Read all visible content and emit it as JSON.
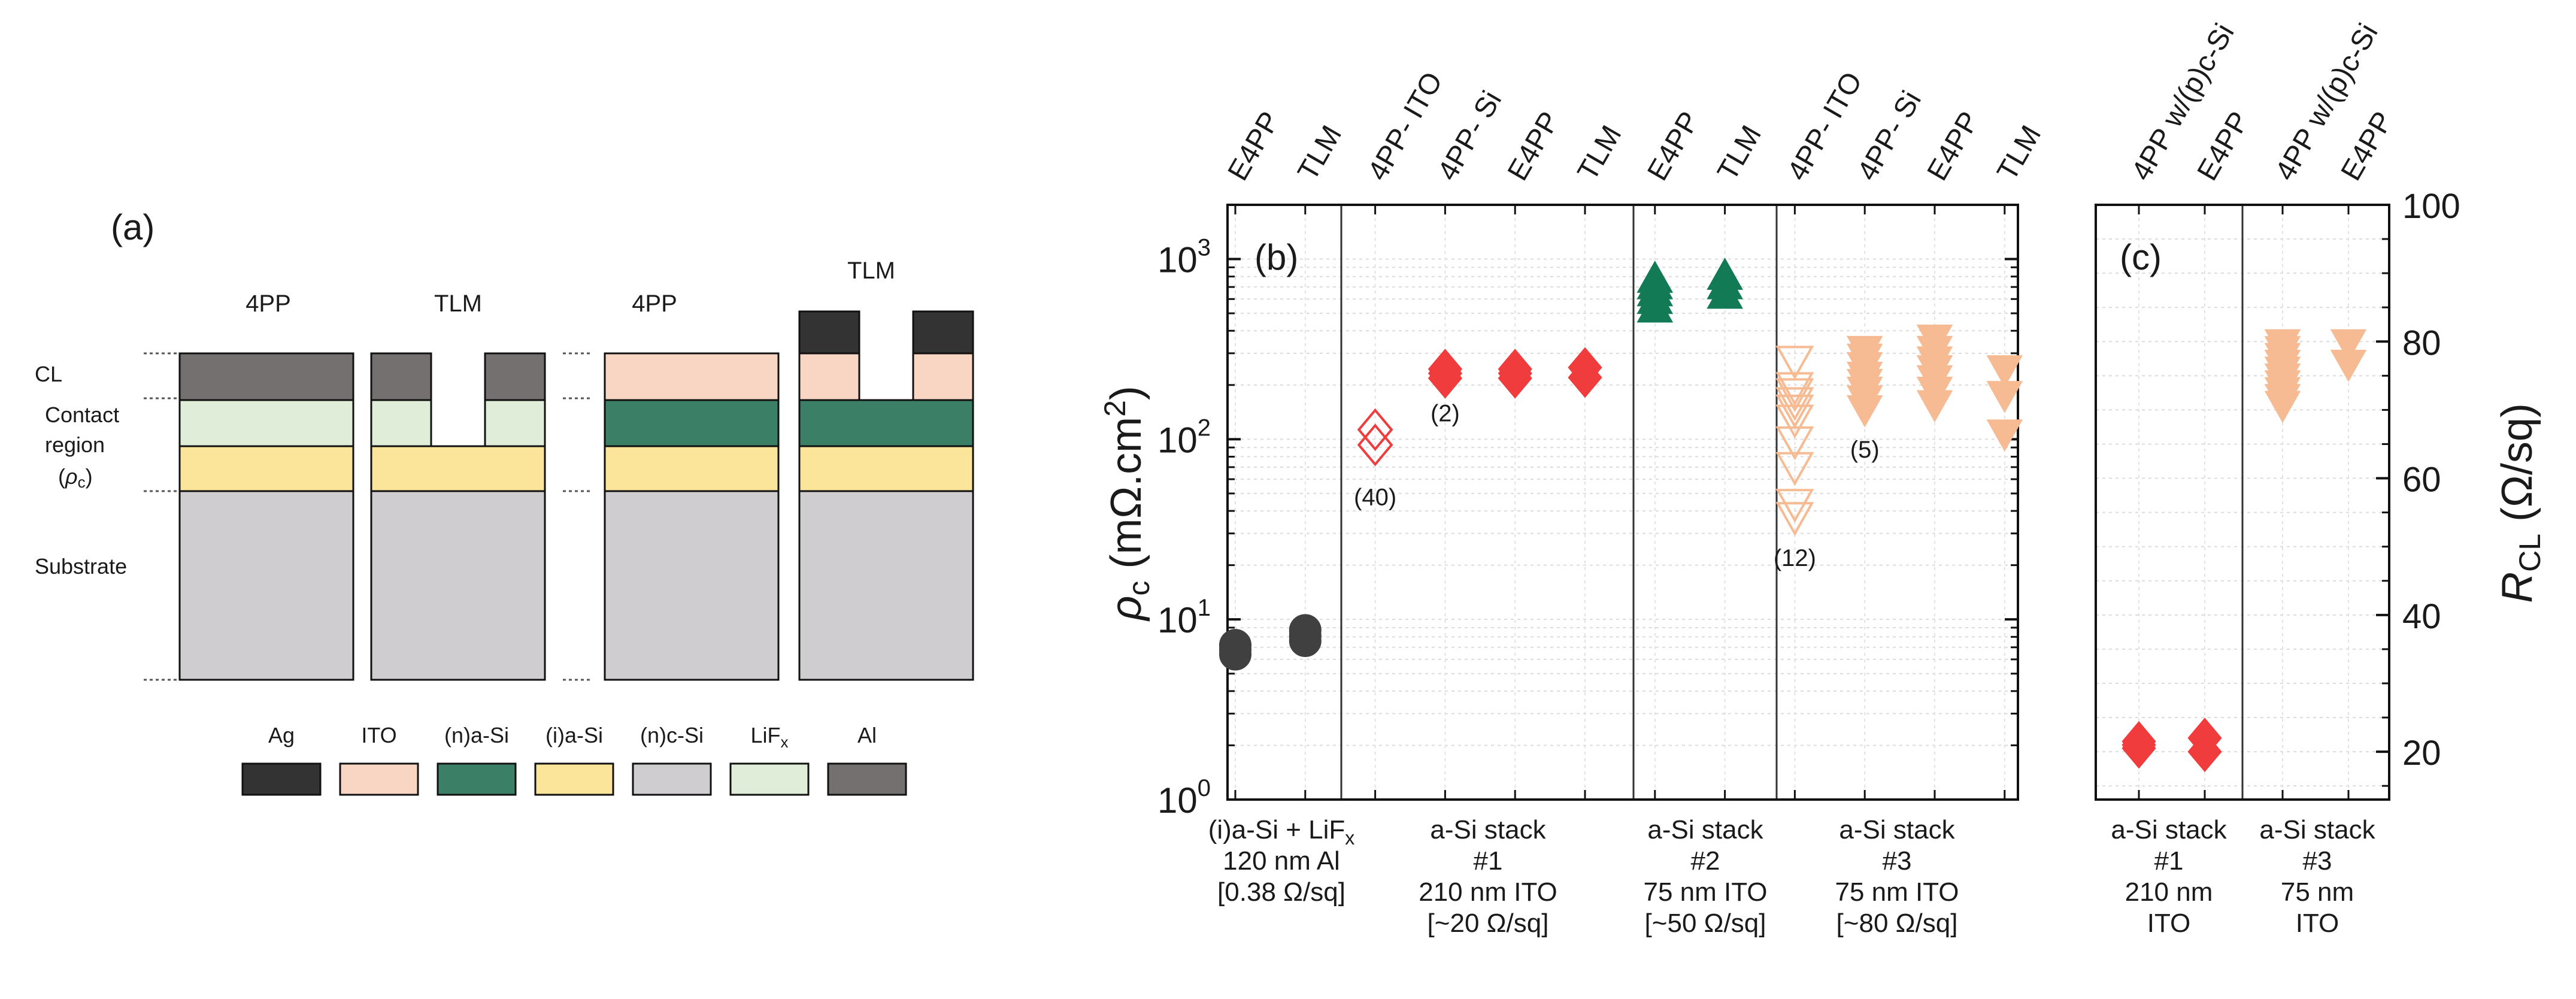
{
  "colors": {
    "ag": "#333333",
    "ito": "#f8d6c3",
    "n_asi": "#3b8066",
    "i_asi": "#fbe59b",
    "n_csi": "#cfcdcf",
    "lifx": "#e0eed9",
    "al": "#757070",
    "stack0": "#404040",
    "stack1": "#f03c3c",
    "stack2": "#127a55",
    "stack3": "#f6bb93"
  },
  "panel_a": {
    "label": "(a)",
    "rows": [
      "CL",
      "Contact",
      "region",
      "(",
      "ρ",
      "c",
      ")",
      "Substrate"
    ],
    "columns": [
      "4PP",
      "TLM",
      "4PP",
      "TLM"
    ],
    "legend": [
      {
        "label": "Ag",
        "key": "ag"
      },
      {
        "label": "ITO",
        "key": "ito"
      },
      {
        "label": "(n)a-Si",
        "key": "n_asi"
      },
      {
        "label": "(i)a-Si",
        "key": "i_asi"
      },
      {
        "label": "(n)c-Si",
        "key": "n_csi"
      },
      {
        "label": "LiF",
        "sub": "x",
        "key": "lifx"
      },
      {
        "label": "Al",
        "key": "al"
      }
    ]
  },
  "chart_data": [
    {
      "type": "scatter",
      "panel": "(b)",
      "y_scale": "log",
      "ylabel_symbol": "ρ",
      "ylabel_sub": "c",
      "ylabel_unit": " (mΩ.cm",
      "ylabel_sup": "2",
      "ylabel_end": ")",
      "ylim": [
        1,
        2000
      ],
      "y_ticks": [
        {
          "b": "10",
          "e": "0",
          "v": 1
        },
        {
          "b": "10",
          "e": "1",
          "v": 10
        },
        {
          "b": "10",
          "e": "2",
          "v": 100
        },
        {
          "b": "10",
          "e": "3",
          "v": 1000
        }
      ],
      "x_top_labels": [
        "E4PP",
        "TLM",
        "4PP- ITO",
        "4PP- Si",
        "E4PP",
        "TLM",
        "E4PP",
        "TLM",
        "4PP- ITO",
        "4PP- Si",
        "E4PP",
        "TLM"
      ],
      "groups": [
        {
          "lines": [
            {
              "t": "(i)a-Si + LiF",
              "sub": "x"
            },
            {
              "t": "120 nm Al"
            },
            {
              "t": "[0.38 Ω/sq]"
            }
          ]
        },
        {
          "lines": [
            {
              "t": "a-Si stack"
            },
            {
              "t": "#1"
            },
            {
              "t": "210 nm ITO"
            },
            {
              "t": "[~20 Ω/sq]"
            }
          ]
        },
        {
          "lines": [
            {
              "t": "a-Si stack"
            },
            {
              "t": "#2"
            },
            {
              "t": "75 nm ITO"
            },
            {
              "t": "[~50 Ω/sq]"
            }
          ]
        },
        {
          "lines": [
            {
              "t": "a-Si stack"
            },
            {
              "t": "#3"
            },
            {
              "t": "75 nm ITO"
            },
            {
              "t": "[~80 Ω/sq]"
            }
          ]
        }
      ],
      "series": [
        {
          "x": 0,
          "marker": "circle",
          "filled": true,
          "color_key": "stack0",
          "values": [
            6.4,
            6.8,
            7.2
          ]
        },
        {
          "x": 1,
          "marker": "circle",
          "filled": true,
          "color_key": "stack0",
          "values": [
            7.6,
            8.1,
            8.7
          ]
        },
        {
          "x": 2,
          "marker": "diamond",
          "filled": false,
          "color_key": "stack1",
          "values": [
            93,
            113
          ]
        },
        {
          "x": 3,
          "marker": "diamond",
          "filled": true,
          "color_key": "stack1",
          "values": [
            218,
            232,
            245
          ]
        },
        {
          "x": 4,
          "marker": "diamond",
          "filled": true,
          "color_key": "stack1",
          "values": [
            218,
            232,
            245
          ]
        },
        {
          "x": 5,
          "marker": "diamond",
          "filled": true,
          "color_key": "stack1",
          "values": [
            220,
            250
          ]
        },
        {
          "x": 6,
          "marker": "triangle-up",
          "filled": true,
          "color_key": "stack2",
          "values": [
            520,
            580,
            640,
            700,
            760
          ]
        },
        {
          "x": 7,
          "marker": "triangle-up",
          "filled": true,
          "color_key": "stack2",
          "values": [
            620,
            700,
            790
          ]
        },
        {
          "x": 8,
          "marker": "triangle-down",
          "filled": false,
          "color_key": "stack3",
          "values": [
            38,
            45,
            72,
            100,
            132,
            150,
            165,
            185,
            200,
            280
          ]
        },
        {
          "x": 9,
          "marker": "triangle-down",
          "filled": true,
          "color_key": "stack3",
          "values": [
            150,
            170,
            190,
            210,
            230,
            260,
            290,
            320
          ]
        },
        {
          "x": 10,
          "marker": "triangle-down",
          "filled": true,
          "color_key": "stack3",
          "values": [
            160,
            190,
            220,
            250,
            280,
            320,
            370
          ]
        },
        {
          "x": 11,
          "marker": "triangle-down",
          "filled": true,
          "color_key": "stack3",
          "values": [
            110,
            180,
            250
          ]
        }
      ],
      "annotations": [
        {
          "text": "(40)",
          "x": 2,
          "y": 48
        },
        {
          "text": "(2)",
          "x": 3,
          "y": 140
        },
        {
          "text": "(12)",
          "x": 8,
          "y": 22
        },
        {
          "text": "(5)",
          "x": 9,
          "y": 88
        }
      ]
    },
    {
      "type": "scatter",
      "panel": "(c)",
      "ylabel_symbol": "R",
      "ylabel_sub": "CL",
      "ylabel_unit": " (Ω/sq)",
      "ylim": [
        13,
        100
      ],
      "y_ticks": [
        20,
        40,
        60,
        80,
        100
      ],
      "x_top_labels": [
        "4PP w/(p)c-Si",
        "E4PP",
        "4PP w/(p)c-Si",
        "E4PP"
      ],
      "groups": [
        {
          "lines": [
            {
              "t": "a-Si stack"
            },
            {
              "t": "#1"
            },
            {
              "t": "210 nm"
            },
            {
              "t": "ITO"
            }
          ]
        },
        {
          "lines": [
            {
              "t": "a-Si stack"
            },
            {
              "t": "#3"
            },
            {
              "t": "75 nm"
            },
            {
              "t": "ITO"
            }
          ]
        }
      ],
      "series": [
        {
          "x": 0,
          "marker": "diamond",
          "filled": true,
          "color_key": "stack1",
          "values": [
            20.5,
            21,
            21.5
          ]
        },
        {
          "x": 1,
          "marker": "diamond",
          "filled": true,
          "color_key": "stack1",
          "values": [
            20,
            22
          ]
        },
        {
          "x": 2,
          "marker": "triangle-down",
          "filled": true,
          "color_key": "stack3",
          "values": [
            71,
            72,
            73,
            74,
            75,
            76,
            77,
            78,
            79,
            80
          ]
        },
        {
          "x": 3,
          "marker": "triangle-down",
          "filled": true,
          "color_key": "stack3",
          "values": [
            77,
            80
          ]
        }
      ]
    }
  ]
}
